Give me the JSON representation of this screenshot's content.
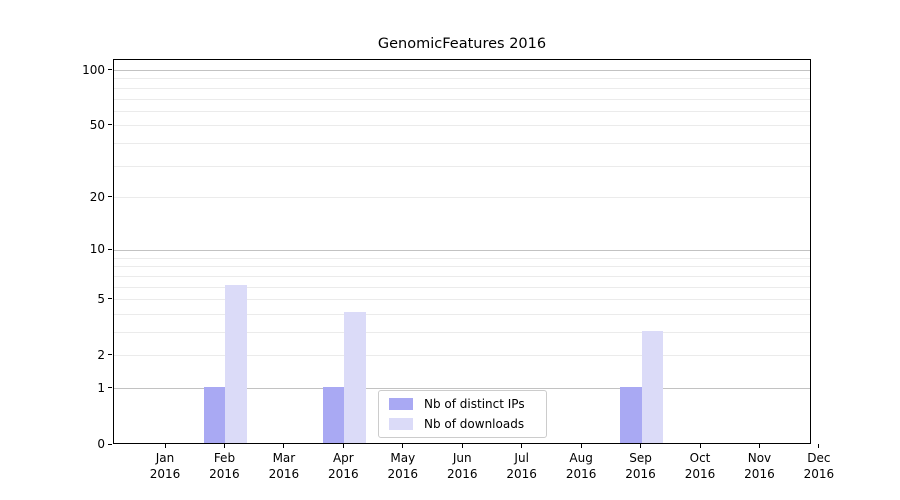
{
  "title": "GenomicFeatures 2016",
  "chart_data": {
    "type": "bar",
    "title": "GenomicFeatures 2016",
    "categories": [
      "Jan",
      "Feb",
      "Mar",
      "Apr",
      "May",
      "Jun",
      "Jul",
      "Aug",
      "Sep",
      "Oct",
      "Nov",
      "Dec"
    ],
    "x_tick_line2": "2016",
    "series": [
      {
        "name": "Nb of distinct IPs",
        "color": "#a9a9f3",
        "values": [
          0,
          1,
          0,
          1,
          0,
          0,
          0,
          0,
          1,
          0,
          0,
          0
        ]
      },
      {
        "name": "Nb of downloads",
        "color": "#dbdbf8",
        "values": [
          0,
          6,
          0,
          4,
          0,
          0,
          0,
          0,
          3,
          0,
          0,
          0
        ]
      }
    ],
    "xlabel": "",
    "ylabel": "",
    "yscale": "log1p",
    "ylim": [
      0,
      114
    ],
    "y_ticks": [
      0,
      1,
      2,
      5,
      10,
      20,
      50,
      100
    ],
    "y_major_gridlines": [
      1,
      10,
      100
    ],
    "y_minor_gridlines": [
      2,
      3,
      4,
      5,
      6,
      7,
      8,
      9,
      20,
      30,
      40,
      50,
      60,
      70,
      80,
      90
    ],
    "grid": "on",
    "legend_position": "bottom-center",
    "colors": {
      "major_grid": "#c2c2c2",
      "minor_grid": "#ebebeb",
      "axis": "#000000",
      "background": "#ffffff"
    }
  }
}
